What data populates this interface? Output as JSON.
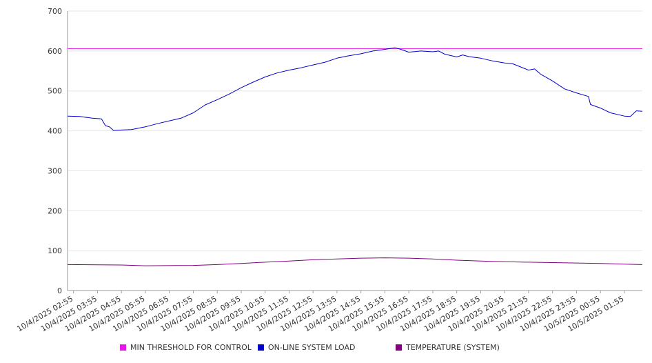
{
  "chart_data": {
    "type": "line",
    "ylim": [
      0,
      700
    ],
    "yticks": [
      0,
      100,
      200,
      300,
      400,
      500,
      600,
      700
    ],
    "x_range": [
      "10/4/2025 02:40",
      "10/5/2025 02:40"
    ],
    "xticks": [
      "10/4/2025 02:55",
      "10/4/2025 03:55",
      "10/4/2025 04:55",
      "10/4/2025 05:55",
      "10/4/2025 06:55",
      "10/4/2025 07:55",
      "10/4/2025 08:55",
      "10/4/2025 09:55",
      "10/4/2025 10:55",
      "10/4/2025 11:55",
      "10/4/2025 12:55",
      "10/4/2025 13:55",
      "10/4/2025 14:55",
      "10/4/2025 15:55",
      "10/4/2025 16:55",
      "10/4/2025 17:55",
      "10/4/2025 18:55",
      "10/4/2025 19:55",
      "10/4/2025 20:55",
      "10/4/2025 21:55",
      "10/4/2025 22:55",
      "10/4/2025 23:55",
      "10/5/2025 00:55",
      "10/5/2025 01:55"
    ],
    "grid": true,
    "legend_position": "bottom",
    "series": [
      {
        "name": "MIN THRESHOLD FOR CONTROL",
        "color": "#e815e8",
        "points": [
          [
            "10/4/2025 02:40",
            606
          ],
          [
            "10/5/2025 02:40",
            606
          ]
        ]
      },
      {
        "name": "ON-LINE SYSTEM LOAD",
        "color": "#0000cc",
        "points": [
          [
            "10/4/2025 02:40",
            437
          ],
          [
            "10/4/2025 03:10",
            436
          ],
          [
            "10/4/2025 03:40",
            432
          ],
          [
            "10/4/2025 04:05",
            430
          ],
          [
            "10/4/2025 04:15",
            413
          ],
          [
            "10/4/2025 04:25",
            410
          ],
          [
            "10/4/2025 04:35",
            401
          ],
          [
            "10/4/2025 04:55",
            402
          ],
          [
            "10/4/2025 05:20",
            403
          ],
          [
            "10/4/2025 05:55",
            410
          ],
          [
            "10/4/2025 06:25",
            418
          ],
          [
            "10/4/2025 06:55",
            425
          ],
          [
            "10/4/2025 07:25",
            432
          ],
          [
            "10/4/2025 07:55",
            445
          ],
          [
            "10/4/2025 08:25",
            465
          ],
          [
            "10/4/2025 08:55",
            478
          ],
          [
            "10/4/2025 09:25",
            492
          ],
          [
            "10/4/2025 09:55",
            508
          ],
          [
            "10/4/2025 10:25",
            522
          ],
          [
            "10/4/2025 10:55",
            535
          ],
          [
            "10/4/2025 11:25",
            545
          ],
          [
            "10/4/2025 11:55",
            552
          ],
          [
            "10/4/2025 12:25",
            558
          ],
          [
            "10/4/2025 12:55",
            565
          ],
          [
            "10/4/2025 13:25",
            572
          ],
          [
            "10/4/2025 13:55",
            582
          ],
          [
            "10/4/2025 14:25",
            588
          ],
          [
            "10/4/2025 14:55",
            593
          ],
          [
            "10/4/2025 15:25",
            600
          ],
          [
            "10/4/2025 15:55",
            604
          ],
          [
            "10/4/2025 16:20",
            608
          ],
          [
            "10/4/2025 16:35",
            604
          ],
          [
            "10/4/2025 16:55",
            597
          ],
          [
            "10/4/2025 17:25",
            600
          ],
          [
            "10/4/2025 17:55",
            598
          ],
          [
            "10/4/2025 18:10",
            600
          ],
          [
            "10/4/2025 18:25",
            592
          ],
          [
            "10/4/2025 18:55",
            585
          ],
          [
            "10/4/2025 19:10",
            590
          ],
          [
            "10/4/2025 19:25",
            586
          ],
          [
            "10/4/2025 19:55",
            582
          ],
          [
            "10/4/2025 20:25",
            575
          ],
          [
            "10/4/2025 20:55",
            570
          ],
          [
            "10/4/2025 21:15",
            568
          ],
          [
            "10/4/2025 21:35",
            560
          ],
          [
            "10/4/2025 21:55",
            552
          ],
          [
            "10/4/2025 22:10",
            555
          ],
          [
            "10/4/2025 22:25",
            542
          ],
          [
            "10/4/2025 22:55",
            525
          ],
          [
            "10/4/2025 23:25",
            505
          ],
          [
            "10/4/2025 23:55",
            495
          ],
          [
            "10/5/2025 00:25",
            486
          ],
          [
            "10/5/2025 00:30",
            466
          ],
          [
            "10/5/2025 00:55",
            457
          ],
          [
            "10/5/2025 01:20",
            445
          ],
          [
            "10/5/2025 01:55",
            437
          ],
          [
            "10/5/2025 02:10",
            436
          ],
          [
            "10/5/2025 02:25",
            450
          ],
          [
            "10/5/2025 02:40",
            449
          ]
        ]
      },
      {
        "name": "TEMPERATURE (SYSTEM)",
        "color": "#800080",
        "points": [
          [
            "10/4/2025 02:40",
            65
          ],
          [
            "10/4/2025 04:55",
            64
          ],
          [
            "10/4/2025 05:55",
            62
          ],
          [
            "10/4/2025 07:55",
            63
          ],
          [
            "10/4/2025 08:55",
            65
          ],
          [
            "10/4/2025 09:55",
            68
          ],
          [
            "10/4/2025 10:55",
            71
          ],
          [
            "10/4/2025 11:55",
            74
          ],
          [
            "10/4/2025 12:55",
            77
          ],
          [
            "10/4/2025 13:55",
            79
          ],
          [
            "10/4/2025 14:55",
            81
          ],
          [
            "10/4/2025 15:55",
            82
          ],
          [
            "10/4/2025 16:55",
            81
          ],
          [
            "10/4/2025 17:55",
            79
          ],
          [
            "10/4/2025 18:55",
            76
          ],
          [
            "10/4/2025 19:55",
            74
          ],
          [
            "10/4/2025 20:55",
            72
          ],
          [
            "10/4/2025 21:55",
            71
          ],
          [
            "10/4/2025 22:55",
            70
          ],
          [
            "10/4/2025 23:55",
            69
          ],
          [
            "10/5/2025 00:55",
            68
          ],
          [
            "10/5/2025 01:55",
            66
          ],
          [
            "10/5/2025 02:40",
            65
          ]
        ]
      }
    ]
  }
}
